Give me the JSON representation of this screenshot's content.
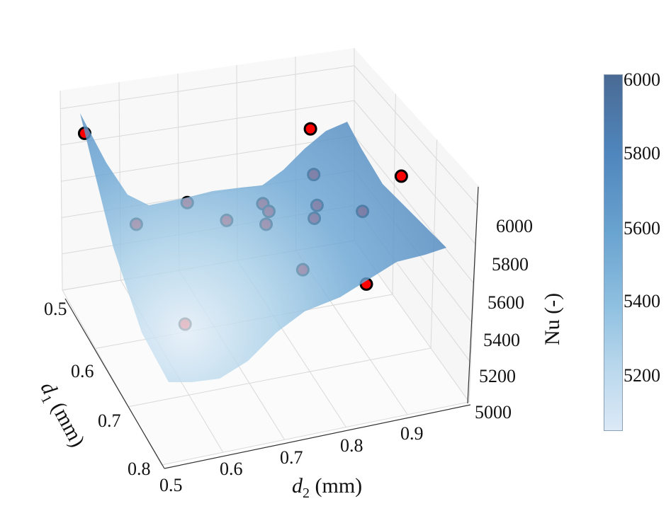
{
  "chart_data": {
    "type": "surface3d",
    "title": "",
    "xlabel": "d",
    "xlabel_sub": "2",
    "xlabel_unit": " (mm)",
    "ylabel": "d",
    "ylabel_sub": "1",
    "ylabel_unit": " (mm)",
    "zlabel": "Nu (-)",
    "x_ticks": [
      "0.5",
      "0.6",
      "0.7",
      "0.8",
      "0.9"
    ],
    "y_ticks": [
      "0.5",
      "0.6",
      "0.7",
      "0.8"
    ],
    "z_ticks": [
      "5000",
      "5200",
      "5400",
      "5600",
      "5800",
      "6000"
    ],
    "xlim": [
      0.5,
      1.0
    ],
    "ylim": [
      0.5,
      0.8
    ],
    "zlim": [
      5000,
      6100
    ],
    "grid": true,
    "colormap": "Blues",
    "colorbar": {
      "ticks": [
        "5200",
        "5400",
        "5600",
        "5800",
        "6000"
      ],
      "range": [
        5050,
        6010
      ]
    },
    "colors": {
      "surface_light": "#e3eef8",
      "surface_dark": "#4a82bb",
      "point_fill": "#ff0000",
      "point_edge": "#000000"
    },
    "points": [
      {
        "d1": 0.51,
        "d2": 0.52,
        "Nu": 5905
      },
      {
        "d1": 0.5,
        "d2": 0.9,
        "Nu": 5580
      },
      {
        "d1": 0.6,
        "d2": 1.0,
        "Nu": 5540
      },
      {
        "d1": 0.8,
        "d2": 0.84,
        "Nu": 5690
      },
      {
        "d1": 0.55,
        "d2": 0.88,
        "Nu": 5500
      },
      {
        "d1": 0.55,
        "d2": 0.67,
        "Nu": 5525
      },
      {
        "d1": 0.6,
        "d2": 0.56,
        "Nu": 5650
      },
      {
        "d1": 0.6,
        "d2": 0.71,
        "Nu": 5545
      },
      {
        "d1": 0.6,
        "d2": 0.77,
        "Nu": 5585
      },
      {
        "d1": 0.6,
        "d2": 0.78,
        "Nu": 5535
      },
      {
        "d1": 0.65,
        "d2": 0.75,
        "Nu": 5640
      },
      {
        "d1": 0.6,
        "d2": 0.86,
        "Nu": 5500
      },
      {
        "d1": 0.65,
        "d2": 0.83,
        "Nu": 5605
      },
      {
        "d1": 0.65,
        "d2": 0.91,
        "Nu": 5575
      },
      {
        "d1": 0.75,
        "d2": 0.76,
        "Nu": 5685
      },
      {
        "d1": 0.7,
        "d2": 0.59,
        "Nu": 5385
      }
    ]
  }
}
